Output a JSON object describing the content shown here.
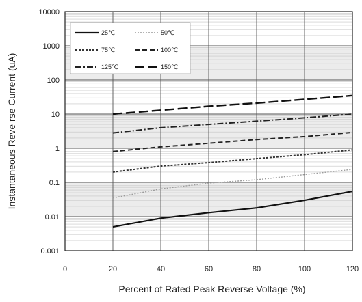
{
  "chart_data": {
    "type": "line",
    "title": "",
    "xlabel": "Percent of  Rated Peak Reverse Voltage (%)",
    "ylabel": "Instantaneous Reve rse Current (uA)",
    "xlim": [
      0,
      120
    ],
    "ylim": [
      0.001,
      10000
    ],
    "yscale": "log",
    "x_ticks": [
      "0",
      "20",
      "40",
      "60",
      "80",
      "100",
      "120"
    ],
    "y_ticks": [
      "0.001",
      "0.01",
      "0.1",
      "1",
      "10",
      "100",
      "1000",
      "10000"
    ],
    "grid": true,
    "legend_position": "top-left",
    "series": [
      {
        "name": "25℃",
        "style": "solid",
        "color": "#111111",
        "x": [
          20,
          40,
          60,
          80,
          100,
          120
        ],
        "y": [
          0.005,
          0.009,
          0.013,
          0.018,
          0.03,
          0.055
        ]
      },
      {
        "name": "50℃",
        "style": "dotted-light",
        "color": "#9a9a9a",
        "x": [
          20,
          40,
          60,
          80,
          100,
          120
        ],
        "y": [
          0.035,
          0.065,
          0.095,
          0.12,
          0.17,
          0.24
        ]
      },
      {
        "name": "75℃",
        "style": "short-dash",
        "color": "#333333",
        "x": [
          20,
          40,
          60,
          80,
          100,
          120
        ],
        "y": [
          0.2,
          0.3,
          0.38,
          0.5,
          0.65,
          0.9
        ]
      },
      {
        "name": "100℃",
        "style": "dash",
        "color": "#222222",
        "x": [
          20,
          40,
          60,
          80,
          100,
          120
        ],
        "y": [
          0.8,
          1.1,
          1.4,
          1.8,
          2.2,
          2.9
        ]
      },
      {
        "name": "125℃",
        "style": "dash-dot",
        "color": "#222222",
        "x": [
          20,
          40,
          60,
          80,
          100,
          120
        ],
        "y": [
          2.8,
          4.0,
          5.0,
          6.2,
          7.8,
          10
        ]
      },
      {
        "name": "150℃",
        "style": "long-dash",
        "color": "#111111",
        "x": [
          20,
          40,
          60,
          80,
          100,
          120
        ],
        "y": [
          10,
          13,
          17,
          21,
          27,
          35
        ]
      }
    ]
  }
}
